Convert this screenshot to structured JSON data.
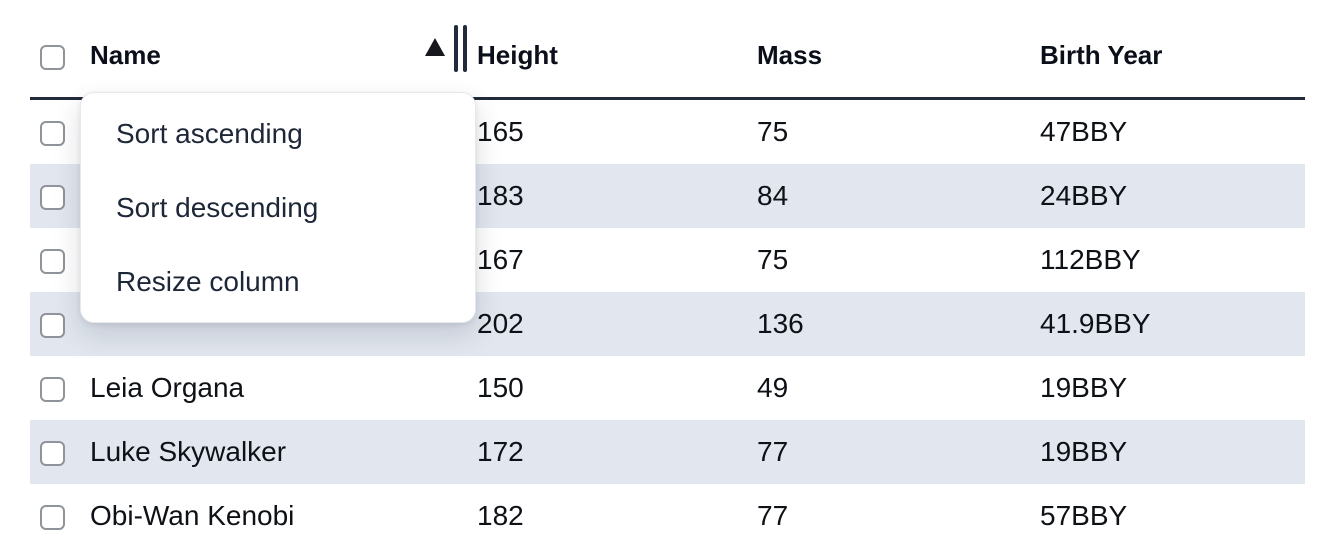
{
  "table": {
    "select_all": {
      "checked": false
    },
    "columns": [
      {
        "label": "Name",
        "sort_indicator": "ascending",
        "has_resize_handle": true
      },
      {
        "label": "Height"
      },
      {
        "label": "Mass"
      },
      {
        "label": "Birth Year"
      }
    ],
    "rows": [
      {
        "name": "",
        "height": "165",
        "mass": "75",
        "birth_year": "47BBY",
        "checked": false,
        "striped": false
      },
      {
        "name": "",
        "height": "183",
        "mass": "84",
        "birth_year": "24BBY",
        "checked": false,
        "striped": true
      },
      {
        "name": "",
        "height": "167",
        "mass": "75",
        "birth_year": "112BBY",
        "checked": false,
        "striped": false
      },
      {
        "name": "",
        "height": "202",
        "mass": "136",
        "birth_year": "41.9BBY",
        "checked": false,
        "striped": true
      },
      {
        "name": "Leia Organa",
        "height": "150",
        "mass": "49",
        "birth_year": "19BBY",
        "checked": false,
        "striped": false
      },
      {
        "name": "Luke Skywalker",
        "height": "172",
        "mass": "77",
        "birth_year": "19BBY",
        "checked": false,
        "striped": true
      },
      {
        "name": "Obi-Wan Kenobi",
        "height": "182",
        "mass": "77",
        "birth_year": "57BBY",
        "checked": false,
        "striped": false
      }
    ]
  },
  "context_menu": {
    "items": [
      {
        "id": "sort-ascending",
        "label": "Sort ascending"
      },
      {
        "id": "sort-descending",
        "label": "Sort descending"
      },
      {
        "id": "resize-column",
        "label": "Resize column"
      }
    ]
  },
  "icons": {
    "sort_ascending": "sort-ascending-triangle",
    "column_resize": "double-bar-resize-handle"
  },
  "colors": {
    "row_stripe": "#e2e7ef",
    "header_underline": "#212b3c",
    "body_text": "#0e1116",
    "menu_text": "#1d2737",
    "checkbox_border": "#8f949b",
    "menu_border": "#e8e9ec",
    "background": "#ffffff"
  }
}
